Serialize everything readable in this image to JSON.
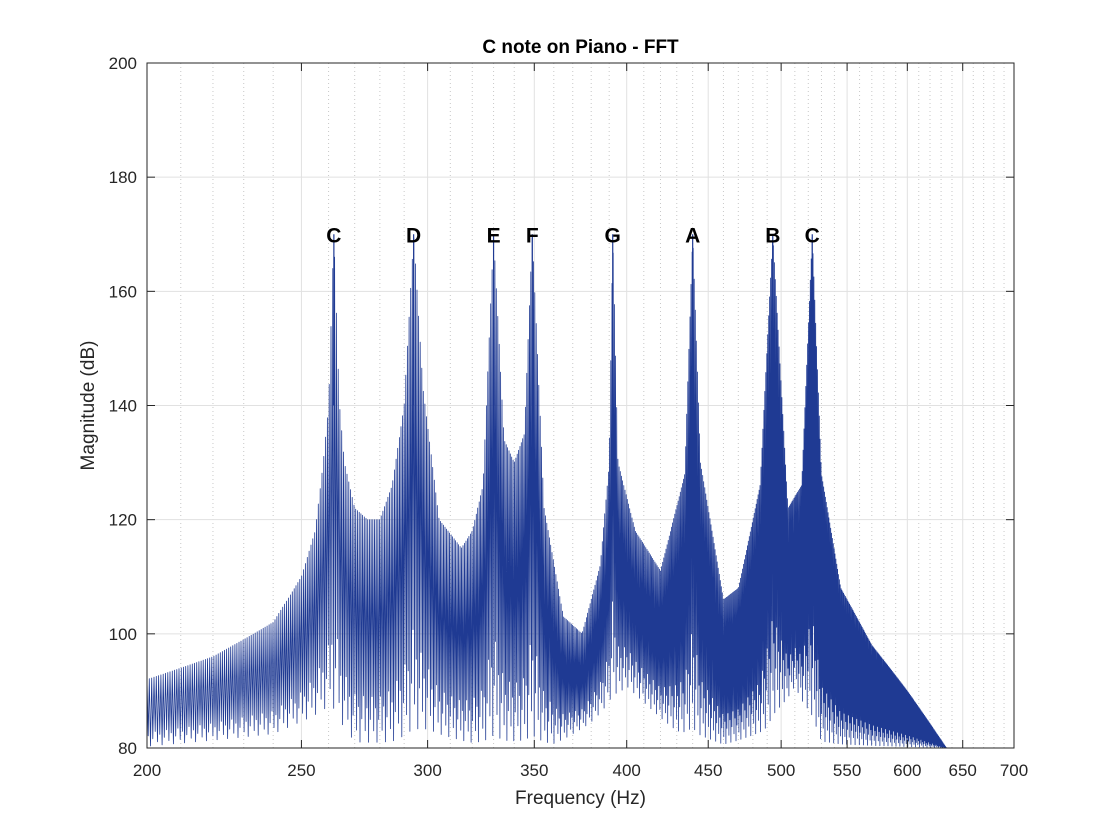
{
  "chart_data": {
    "type": "line",
    "title": "C note on Piano - FFT",
    "xlabel": "Frequency (Hz)",
    "ylabel": "Magnitude (dB)",
    "xscale": "log",
    "xlim": [
      200,
      700
    ],
    "ylim": [
      80,
      200
    ],
    "grid": true,
    "minor_grid": true,
    "x_ticks": [
      200,
      250,
      300,
      350,
      400,
      450,
      500,
      550,
      600,
      650,
      700
    ],
    "y_ticks": [
      80,
      100,
      120,
      140,
      160,
      180,
      200
    ],
    "line_color": "#1f3a93",
    "notes": [
      {
        "label": "C",
        "freq": 262,
        "peak_db": 170
      },
      {
        "label": "D",
        "freq": 294,
        "peak_db": 170
      },
      {
        "label": "E",
        "freq": 330,
        "peak_db": 170
      },
      {
        "label": "F",
        "freq": 349,
        "peak_db": 170
      },
      {
        "label": "G",
        "freq": 392,
        "peak_db": 170
      },
      {
        "label": "A",
        "freq": 440,
        "peak_db": 170
      },
      {
        "label": "B",
        "freq": 494,
        "peak_db": 170
      },
      {
        "label": "C",
        "freq": 523,
        "peak_db": 170
      }
    ],
    "envelope": {
      "x": [
        200,
        220,
        240,
        250,
        255,
        258,
        260,
        262,
        264,
        266,
        270,
        275,
        280,
        285,
        290,
        294,
        298,
        305,
        315,
        320,
        325,
        330,
        335,
        340,
        345,
        349,
        355,
        365,
        375,
        385,
        390,
        392,
        395,
        405,
        420,
        435,
        440,
        445,
        460,
        470,
        485,
        494,
        505,
        515,
        523,
        530,
        545,
        570,
        600,
        635
      ],
      "y": [
        92,
        96,
        102,
        110,
        118,
        130,
        140,
        170,
        141,
        130,
        122,
        120,
        120,
        126,
        140,
        170,
        143,
        120,
        115,
        118,
        126,
        170,
        134,
        130,
        135,
        170,
        122,
        103,
        100,
        112,
        130,
        170,
        130,
        118,
        111,
        128,
        170,
        130,
        106,
        108,
        126,
        170,
        122,
        126,
        170,
        128,
        108,
        98,
        90,
        80
      ]
    },
    "floor": {
      "x": [
        200,
        240,
        260,
        270,
        285,
        300,
        320,
        340,
        360,
        380,
        400,
        430,
        460,
        490,
        510,
        530,
        560,
        600
      ],
      "y": [
        80,
        82,
        86,
        80,
        80,
        82,
        80,
        80,
        80,
        84,
        90,
        82,
        80,
        82,
        90,
        80,
        80,
        80
      ]
    }
  }
}
